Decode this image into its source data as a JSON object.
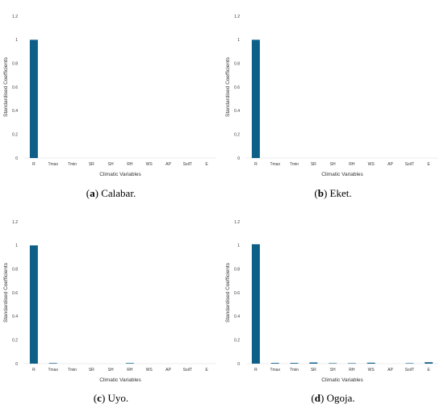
{
  "chart_data": [
    {
      "type": "bar",
      "caption_letter": "a",
      "caption_text": "Calabar.",
      "categories": [
        "R",
        "Tmax",
        "Tmin",
        "SR",
        "SH",
        "RH",
        "WS",
        "AP",
        "SoilT",
        "E"
      ],
      "values": [
        1.0,
        0,
        0,
        0,
        0,
        0,
        0,
        0,
        0,
        0
      ],
      "yticks": [
        "0",
        "0.2",
        "0.4",
        "0.6",
        "0.8",
        "1",
        "1.2"
      ],
      "ylim": [
        0,
        1.2
      ],
      "xlabel": "Climatic Variables",
      "ylabel": "Standardised Coefficients",
      "bar_color": "#0e5f88",
      "grid": false
    },
    {
      "type": "bar",
      "caption_letter": "b",
      "caption_text": "Eket.",
      "categories": [
        "R",
        "Tmax",
        "Tmin",
        "SR",
        "SH",
        "RH",
        "WS",
        "AP",
        "SoilT",
        "E"
      ],
      "values": [
        1.0,
        0,
        0,
        0,
        0,
        0,
        0,
        0,
        0,
        0
      ],
      "yticks": [
        "0",
        "0.2",
        "0.4",
        "0.6",
        "0.8",
        "1",
        "1.2"
      ],
      "ylim": [
        0,
        1.2
      ],
      "xlabel": "Climatic Variables",
      "ylabel": "Standardised Coefficients",
      "bar_color": "#0e5f88",
      "grid": false
    },
    {
      "type": "bar",
      "caption_letter": "c",
      "caption_text": "Uyo.",
      "categories": [
        "R",
        "Tmax",
        "Tmin",
        "SR",
        "SH",
        "RH",
        "WS",
        "AP",
        "SoilT",
        "E"
      ],
      "values": [
        1.0,
        0.005,
        0,
        0,
        0,
        0.005,
        0,
        0,
        0,
        0
      ],
      "yticks": [
        "0",
        "0.2",
        "0.4",
        "0.6",
        "0.8",
        "1",
        "1.2"
      ],
      "ylim": [
        0,
        1.2
      ],
      "xlabel": "Climatic Variables",
      "ylabel": "Standardised Coefficients",
      "bar_color": "#0e5f88",
      "grid": false
    },
    {
      "type": "bar",
      "caption_letter": "d",
      "caption_text": "Ogoja.",
      "categories": [
        "R",
        "Tmax",
        "Tmin",
        "SR",
        "SH",
        "RH",
        "WS",
        "AP",
        "SoilT",
        "E"
      ],
      "values": [
        1.01,
        0.006,
        0.006,
        0.01,
        0.004,
        0.004,
        0.008,
        0,
        0.004,
        0.012
      ],
      "yticks": [
        "0",
        "0.2",
        "0.4",
        "0.6",
        "0.8",
        "1",
        "1.2"
      ],
      "ylim": [
        0,
        1.2
      ],
      "xlabel": "Climatic Variables",
      "ylabel": "Standardised Coefficients",
      "bar_color": "#0e5f88",
      "grid": false
    }
  ]
}
